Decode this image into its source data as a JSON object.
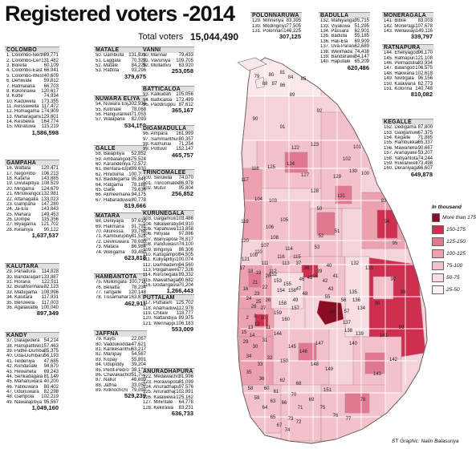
{
  "title": "Registered voters -2014",
  "total": {
    "label": "Total voters",
    "value": "15,044,490"
  },
  "credit": "ST Graphic: Nalin Balasuriya",
  "legend": {
    "title": "In thousand",
    "items": [
      {
        "label": "More than 175",
        "color": "#8a0c22"
      },
      {
        "label": "150-175",
        "color": "#cf2f4f"
      },
      {
        "label": "125-150",
        "color": "#e2788f"
      },
      {
        "label": "100-125",
        "color": "#eba1b0"
      },
      {
        "label": "75-100",
        "color": "#f2c1cb"
      },
      {
        "label": "50-75",
        "color": "#f8dde3"
      },
      {
        "label": "25-50",
        "color": "#fdf0f2"
      }
    ]
  },
  "districts": [
    {
      "name": "COLOMBO",
      "total": "1,586,598",
      "rows": [
        [
          "1. Colombo-North",
          "89,771"
        ],
        [
          "2. Colombo-Central",
          "131,482"
        ],
        [
          "3. Borella",
          "60,109"
        ],
        [
          "4. Colombo-East",
          "66,941"
        ],
        [
          "5. Colombo-West",
          "40,609"
        ],
        [
          "6. Dehiwala",
          "59,812"
        ],
        [
          "7. Ratmalana",
          "66,703"
        ],
        [
          "8. Kolonnawa",
          "120,617"
        ],
        [
          "9. Kotte",
          "74,934"
        ],
        [
          "10. Kaduwela",
          "173,355"
        ],
        [
          "11. Avissawella",
          "117,472"
        ],
        [
          "12. Homagama",
          "174,909"
        ],
        [
          "13. Maharagama",
          "129,801"
        ],
        [
          "14. Kesbewa",
          "164,774"
        ],
        [
          "15. Moratuwa",
          "115,219"
        ]
      ]
    },
    {
      "name": "GAMPAHA",
      "total": "1,637,537",
      "rows": [
        [
          "16. Wattala",
          "120,471"
        ],
        [
          "17. Negombo",
          "106,213"
        ],
        [
          "18. Katana",
          "143,885"
        ],
        [
          "19. Divulapitiya",
          "108,529"
        ],
        [
          "20. Mirigama",
          "124,679"
        ],
        [
          "21. Minuwangoda",
          "132,981"
        ],
        [
          "22. Attanagalla",
          "133,023"
        ],
        [
          "23. Gampaha",
          "147,280"
        ],
        [
          "24. Ja-Ela",
          "143,843"
        ],
        [
          "25. Mahara",
          "149,453"
        ],
        [
          "26. Dompe",
          "115,356"
        ],
        [
          "27. Biyagama",
          "121,702"
        ],
        [
          "28. Kelaniya",
          "90,122"
        ]
      ]
    },
    {
      "name": "KALUTARA",
      "total": "897,349",
      "rows": [
        [
          "29. Panadura",
          "114,828"
        ],
        [
          "30. Bandaragama",
          "133,887"
        ],
        [
          "31. Horana",
          "122,511"
        ],
        [
          "32. Bulathsinhala",
          "82,123"
        ],
        [
          "33. Matugama",
          "108,996"
        ],
        [
          "34. Kalutara",
          "117,931"
        ],
        [
          "35. Beruwela",
          "117,003"
        ],
        [
          "36. Agalawatte",
          "100,040"
        ]
      ]
    },
    {
      "name": "KANDY",
      "total": "1,049,160",
      "rows": [
        [
          "37. Galagedera",
          "54,214"
        ],
        [
          "38. Harispattuwa",
          "157,463"
        ],
        [
          "39. Pathe-Dumbara",
          "85,375"
        ],
        [
          "40. Uda-Dumbara",
          "56,193"
        ],
        [
          "41. Teldeniya",
          "47,685"
        ],
        [
          "42. Kundasale",
          "94,670"
        ],
        [
          "43. Hewaheta",
          "69,243"
        ],
        [
          "44. Senkadagala",
          "81,149"
        ],
        [
          "45. Mahanuwara",
          "40,200"
        ],
        [
          "46. Yatinuwara",
          "80,402"
        ],
        [
          "47. Udunuwara",
          "82,298"
        ],
        [
          "48. Gampola",
          "102,219"
        ],
        [
          "49. Nawalapitiya",
          "95,567"
        ]
      ]
    },
    {
      "name": "MATALE",
      "total": "379,675",
      "rows": [
        [
          "50. Dambulla",
          "131,831"
        ],
        [
          "51. Laggala",
          "70,323"
        ],
        [
          "52. Matale",
          "84,225"
        ],
        [
          "53. Rattota",
          "93,296"
        ]
      ]
    },
    {
      "name": "NUWARA ELIYA",
      "total": "534,150",
      "rows": [
        [
          "54. Nuwara Eliya-Maskeliya",
          "302,936"
        ],
        [
          "55. Kotmale",
          "78,068"
        ],
        [
          "56. Hanguranketa",
          "71,053"
        ],
        [
          "57. Walapane",
          "82,093"
        ]
      ]
    },
    {
      "name": "GALLE",
      "total": "819,666",
      "rows": [
        [
          "58. Balapitiya",
          "52,852"
        ],
        [
          "59. Ambalangoda",
          "75,524"
        ],
        [
          "60. Karandeniya",
          "72,572"
        ],
        [
          "61. Bentara-Elpitiya",
          "89,630"
        ],
        [
          "62. Hiniduma",
          "100,757"
        ],
        [
          "63. Baddegama",
          "95,841"
        ],
        [
          "64. Ratgama",
          "78,182"
        ],
        [
          "65. Galle",
          "79,636"
        ],
        [
          "66. Akmeemana",
          "94,175"
        ],
        [
          "67. Habaraduwa",
          "80,778"
        ]
      ]
    },
    {
      "name": "MATARA",
      "total": "623,818",
      "rows": [
        [
          "68. Deniyaya",
          "97,610"
        ],
        [
          "69. Hakmana",
          "91,791"
        ],
        [
          "70. Akuressa",
          "93,768"
        ],
        [
          "71. Kamburupitiya",
          "81,524"
        ],
        [
          "72. Devinuwara",
          "78,690"
        ],
        [
          "73. Matara",
          "86,984"
        ],
        [
          "74. Weligama",
          "93,450"
        ]
      ]
    },
    {
      "name": "HAMBANTOTA",
      "total": "462,911",
      "rows": [
        [
          "75. Mulkirigala",
          "100,711"
        ],
        [
          "76. Beliatta",
          "78,234"
        ],
        [
          "77. Tangalle",
          "120,148"
        ],
        [
          "78. Tissamaharama",
          "163,818"
        ]
      ]
    },
    {
      "name": "JAFFNA",
      "total": "529,239",
      "rows": [
        [
          "79. Kayts",
          "22,067"
        ],
        [
          "80. Vaddukoddai",
          "47,621"
        ],
        [
          "81. Kankesanthurai",
          "63,217"
        ],
        [
          "82. Manipay",
          "54,567"
        ],
        [
          "83. Kopay",
          "55,891"
        ],
        [
          "84. Udupiddy",
          "39,204"
        ],
        [
          "85. Point-Pedro",
          "38,138"
        ],
        [
          "86. Chavakachcheri",
          "51,702"
        ],
        [
          "87. Nallur",
          "46,699"
        ],
        [
          "88. Jaffna",
          "33,050"
        ],
        [
          "89. Killinochchi",
          "79,093"
        ]
      ]
    },
    {
      "name": "VANNI",
      "total": "253,058",
      "rows": [
        [
          "90. Mannar",
          "79,433"
        ],
        [
          "91. Vavuniya",
          "109,705"
        ],
        [
          "92. Mullaitivu",
          "63,920"
        ]
      ]
    },
    {
      "name": "BATTICALOA",
      "total": "365,167",
      "rows": [
        [
          "93. Kalkudah",
          "105,056"
        ],
        [
          "94. Batticaloa",
          "172,499"
        ],
        [
          "95. Paddiruppu",
          "87,612"
        ]
      ]
    },
    {
      "name": "DIGAMADULLA",
      "total": "465,757",
      "rows": [
        [
          "96. Ampara",
          "161,999"
        ],
        [
          "97. Sammanthurai",
          "80,357"
        ],
        [
          "98. Kalmunai",
          "71,254"
        ],
        [
          "99. Pottuvil",
          "152,147"
        ]
      ]
    },
    {
      "name": "TRINCOMALEE",
      "total": "256,852",
      "rows": [
        [
          "100. Seruwila",
          "74,070"
        ],
        [
          "101. Trincomalee",
          "86,978"
        ],
        [
          "102. Mutur",
          "95,804"
        ]
      ]
    },
    {
      "name": "KURUNEGALA",
      "total": "1,266,443",
      "rows": [
        [
          "103. Galgamuwa",
          "103,486"
        ],
        [
          "104. Nikaweratiya",
          "94,910"
        ],
        [
          "105. Yapahuwa",
          "113,858"
        ],
        [
          "106. Hiriyala",
          "97,886"
        ],
        [
          "107. Wariyapola",
          "76,817"
        ],
        [
          "108. Panduwasnuwara",
          "74,100"
        ],
        [
          "109. Bingiriya",
          "86,306"
        ],
        [
          "110. Katugampola",
          "94,505"
        ],
        [
          "111. Kuliyapitiya",
          "100,074"
        ],
        [
          "112. Dambadeniya",
          "94,560"
        ],
        [
          "113. Polgahawela",
          "77,326"
        ],
        [
          "114. Kurunegala",
          "89,332"
        ],
        [
          "115. Mawathagama",
          "90,682"
        ],
        [
          "116. Dodangaslanda",
          "70,204"
        ]
      ]
    },
    {
      "name": "PUTTALAM",
      "total": "553,009",
      "rows": [
        [
          "117. Puttalam",
          "125,702"
        ],
        [
          "118. Anamaduwa",
          "112,978"
        ],
        [
          "119. Chilaw",
          "118,777"
        ],
        [
          "120. Nattandiya",
          "89,975"
        ],
        [
          "121. Wennappuwa",
          "106,183"
        ]
      ]
    },
    {
      "name": "ANURADHAPURA",
      "total": "636,733",
      "rows": [
        [
          "122. Medawachchiya",
          "81,996"
        ],
        [
          "123. Horawupotana",
          "81,099"
        ],
        [
          "124. Anuradhapura-East",
          "97,576"
        ],
        [
          "125. Anuradhapura-West",
          "102,891"
        ],
        [
          "126. Kalawewa",
          "125,162"
        ],
        [
          "127. Mihintale",
          "64,778"
        ],
        [
          "128. Kekirawa",
          "83,231"
        ]
      ]
    },
    {
      "name": "POLONNARUWA",
      "total": "307,125",
      "rows": [
        [
          "129. Minneriya",
          "83,395"
        ],
        [
          "130. Medirigiriya",
          "77,505"
        ],
        [
          "131. Polonnaruwa",
          "146,225"
        ]
      ]
    },
    {
      "name": "BADULLA",
      "total": "620,486",
      "rows": [
        [
          "132. Mahiyangana",
          "95,715"
        ],
        [
          "133. Viyaluwa",
          "51,295"
        ],
        [
          "134. Passara",
          "62,901"
        ],
        [
          "135. Badulla",
          "55,185"
        ],
        [
          "136. Hali-Ela",
          "69,909"
        ],
        [
          "137. Uva-Paranagama",
          "62,689"
        ],
        [
          "138. Welimada",
          "74,438"
        ],
        [
          "139. Bandarawela",
          "84,147"
        ],
        [
          "140. Haputale",
          "65,209"
        ]
      ]
    },
    {
      "name": "MONERAGALA",
      "total": "339,797",
      "rows": [
        [
          "141. Bibile",
          "83,003"
        ],
        [
          "142. Moneragala",
          "107,678"
        ],
        [
          "143. Wellawaya",
          "149,116"
        ]
      ]
    },
    {
      "name": "RATNAPURA",
      "total": "810,082",
      "rows": [
        [
          "144. Eheliyagoda",
          "96,170"
        ],
        [
          "145. Ratnapura",
          "121,108"
        ],
        [
          "146. Pelmadulla",
          "83,934"
        ],
        [
          "147. Balangoda",
          "106,575"
        ],
        [
          "148. Rakwana",
          "102,618"
        ],
        [
          "149. Nivitigala",
          "96,156"
        ],
        [
          "150. Kalawana",
          "62,773"
        ],
        [
          "151. Kolonna",
          "140,748"
        ]
      ]
    },
    {
      "name": "KEGALLE",
      "total": "649,878",
      "rows": [
        [
          "152. Dedigama",
          "87,800"
        ],
        [
          "153. Galigamuwa",
          "67,375"
        ],
        [
          "154. Kegalle",
          "71,885"
        ],
        [
          "155. Rambukkana",
          "65,337"
        ],
        [
          "156. Mawanella",
          "90,667"
        ],
        [
          "157. Aranayake",
          "53,207"
        ],
        [
          "158. Yatiyantota",
          "74,244"
        ],
        [
          "159. Ruwanwella",
          "73,498"
        ],
        [
          "160. Deraniyagala",
          "66,607"
        ]
      ]
    }
  ],
  "map_labels": [
    "79",
    "80",
    "81",
    "84",
    "85",
    "86",
    "87",
    "88",
    "89",
    "92",
    "90",
    "91",
    "101",
    "100",
    "102",
    "122",
    "123",
    "125",
    "124",
    "127",
    "128",
    "117",
    "118",
    "129",
    "130",
    "131",
    "93",
    "94",
    "95",
    "103",
    "104",
    "105",
    "106",
    "107",
    "108",
    "109",
    "119",
    "120",
    "121",
    "111",
    "112",
    "113",
    "114",
    "115",
    "116",
    "110",
    "50",
    "51",
    "52",
    "53",
    "37",
    "38",
    "39",
    "40",
    "41",
    "42",
    "43",
    "44",
    "45",
    "46",
    "47",
    "48",
    "49",
    "54",
    "55",
    "56",
    "57",
    "96",
    "97",
    "98",
    "99",
    "132",
    "133",
    "134",
    "135",
    "136",
    "137",
    "138",
    "139",
    "140",
    "141",
    "142",
    "143",
    "16",
    "17",
    "18",
    "19",
    "20",
    "21",
    "22",
    "23",
    "24",
    "25",
    "26",
    "27",
    "28",
    "152",
    "153",
    "154",
    "155",
    "156",
    "157",
    "158",
    "159",
    "160",
    "2",
    "8",
    "10",
    "11",
    "12",
    "13",
    "14",
    "15",
    "29",
    "30",
    "31",
    "32",
    "33",
    "34",
    "35",
    "36",
    "144",
    "145",
    "146",
    "147",
    "148",
    "149",
    "150",
    "151",
    "58",
    "59",
    "60",
    "61",
    "62",
    "63",
    "64",
    "65",
    "66",
    "67",
    "68",
    "69",
    "70",
    "71",
    "72",
    "73",
    "74",
    "75",
    "76",
    "77",
    "78"
  ]
}
